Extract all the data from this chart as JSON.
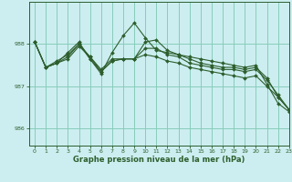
{
  "title": "Graphe pression niveau de la mer (hPa)",
  "background_color": "#cceef0",
  "grid_color": "#88ccbb",
  "line_color": "#2d5e2d",
  "xlim": [
    -0.5,
    23
  ],
  "ylim": [
    985.6,
    989.0
  ],
  "yticks": [
    986,
    987,
    988
  ],
  "xtick_labels": [
    "0",
    "1",
    "2",
    "3",
    "4",
    "5",
    "6",
    "7",
    "8",
    "9",
    "10",
    "11",
    "12",
    "13",
    "14",
    "15",
    "16",
    "17",
    "18",
    "19",
    "20",
    "21",
    "22",
    "23"
  ],
  "series": [
    {
      "x": [
        0,
        1,
        2,
        3,
        4,
        5,
        6,
        7,
        8,
        9,
        10,
        11,
        12,
        13,
        14,
        15,
        16,
        17,
        18,
        19,
        20,
        21,
        22,
        23
      ],
      "y": [
        988.05,
        987.45,
        987.55,
        987.7,
        988.0,
        987.65,
        987.3,
        987.8,
        988.2,
        988.5,
        988.15,
        987.85,
        987.8,
        987.75,
        987.7,
        987.65,
        987.6,
        987.55,
        987.5,
        987.45,
        987.5,
        987.05,
        986.6,
        986.4
      ]
    },
    {
      "x": [
        0,
        1,
        2,
        3,
        4,
        5,
        6,
        7,
        8,
        9,
        10,
        11,
        12,
        13,
        14,
        15,
        16,
        17,
        18,
        19,
        20,
        21,
        22,
        23
      ],
      "y": [
        988.05,
        987.45,
        987.55,
        987.8,
        988.05,
        987.65,
        987.35,
        987.6,
        987.65,
        987.65,
        988.05,
        988.1,
        987.85,
        987.75,
        987.65,
        987.55,
        987.5,
        987.45,
        987.45,
        987.4,
        987.45,
        987.2,
        986.75,
        986.45
      ]
    },
    {
      "x": [
        0,
        1,
        2,
        3,
        4,
        5,
        6,
        7,
        8,
        9,
        10,
        11,
        12,
        13,
        14,
        15,
        16,
        17,
        18,
        19,
        20,
        21,
        22,
        23
      ],
      "y": [
        988.05,
        987.45,
        987.6,
        987.75,
        988.0,
        987.7,
        987.4,
        987.65,
        987.65,
        987.65,
        987.9,
        987.9,
        987.75,
        987.7,
        987.55,
        987.5,
        987.45,
        987.4,
        987.4,
        987.35,
        987.4,
        987.15,
        986.8,
        986.45
      ]
    },
    {
      "x": [
        0,
        1,
        2,
        3,
        4,
        5,
        6,
        7,
        8,
        9,
        10,
        11,
        12,
        13,
        14,
        15,
        16,
        17,
        18,
        19,
        20,
        21,
        22,
        23
      ],
      "y": [
        988.05,
        987.45,
        987.55,
        987.65,
        987.95,
        987.7,
        987.35,
        987.6,
        987.65,
        987.65,
        987.75,
        987.7,
        987.6,
        987.55,
        987.45,
        987.4,
        987.35,
        987.3,
        987.25,
        987.2,
        987.25,
        987.0,
        986.75,
        986.45
      ]
    }
  ]
}
